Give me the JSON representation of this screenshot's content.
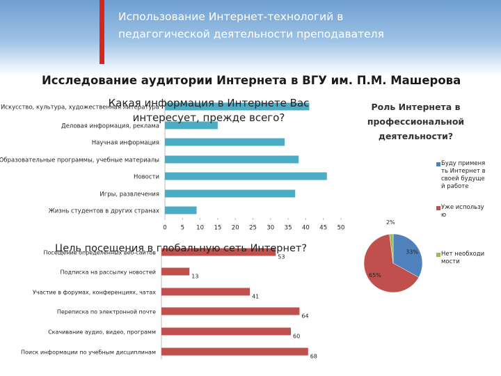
{
  "header": {
    "title": "Использование Интернет-технологий в педагогической деятельности преподавателя",
    "subtitle": "Исследование аудитории Интернета в ВГУ им. П.М. Машерова"
  },
  "chart_data": [
    {
      "type": "bar",
      "orientation": "horizontal",
      "title": "Какая информация в Интернете Вас интересует, прежде всего?",
      "categories": [
        "Искусство, культура, художественная литература",
        "Деловая информация, реклама",
        "Научная информация",
        "Образовательные программы, учебные материалы",
        "Новости",
        "Игры, развлечения",
        "Жизнь студентов в других странах"
      ],
      "values": [
        41,
        15,
        34,
        38,
        46,
        37,
        9
      ],
      "color": "#4bacc6",
      "xlim": [
        0,
        50
      ],
      "xticks": [
        0,
        5,
        10,
        15,
        20,
        25,
        30,
        35,
        40,
        45,
        50
      ]
    },
    {
      "type": "pie",
      "title": "Роль Интернета в профессиональной деятельности?",
      "categories": [
        "Буду применять Интернет в своей будущей работе",
        "Уже использую",
        "Нет необходимости"
      ],
      "values": [
        33,
        65,
        2
      ],
      "value_labels": [
        "33%",
        "65%",
        "2%"
      ],
      "colors": [
        "#4f81bd",
        "#c0504d",
        "#9bbb59"
      ]
    },
    {
      "type": "bar",
      "orientation": "horizontal",
      "title": "Цель посещения в глобальную сеть Интернет?",
      "categories": [
        "Посещение определенных веб-сайтов",
        "Подписка на рассылку новостей",
        "Участие в форумах, конференциях, чатах",
        "Переписка по электронной почте",
        "Скачивание аудио, видео, программ",
        "Поиск информации по учебным дисциплинам"
      ],
      "values": [
        53,
        13,
        41,
        64,
        60,
        68
      ],
      "color": "#c0504d",
      "data_labels": true
    }
  ]
}
